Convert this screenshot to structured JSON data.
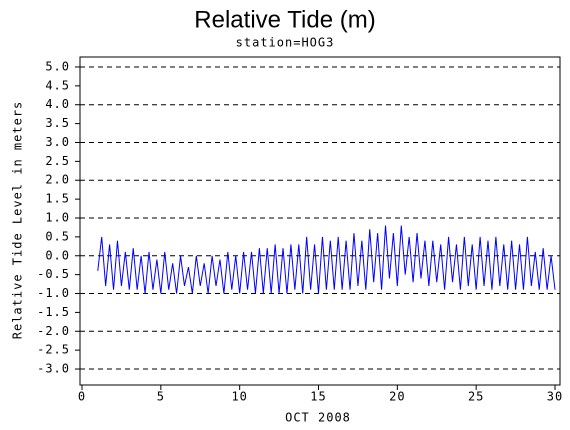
{
  "chart_data": {
    "type": "line",
    "title": "Relative Tide (m)",
    "subtitle": "station=HOG3",
    "x_label": "OCT 2008",
    "y_label": "Relative Tide Level in meters",
    "x": [
      1,
      1.25,
      1.5,
      1.75,
      2,
      2.25,
      2.5,
      2.75,
      3,
      3.25,
      3.5,
      3.75,
      4,
      4.25,
      4.5,
      4.75,
      5,
      5.25,
      5.5,
      5.75,
      6,
      6.25,
      6.5,
      6.75,
      7,
      7.25,
      7.5,
      7.75,
      8,
      8.25,
      8.5,
      8.75,
      9,
      9.25,
      9.5,
      9.75,
      10,
      10.25,
      10.5,
      10.75,
      11,
      11.25,
      11.5,
      11.75,
      12,
      12.25,
      12.5,
      12.75,
      13,
      13.25,
      13.5,
      13.75,
      14,
      14.25,
      14.5,
      14.75,
      15,
      15.25,
      15.5,
      15.75,
      16,
      16.25,
      16.5,
      16.75,
      17,
      17.25,
      17.5,
      17.75,
      18,
      18.25,
      18.5,
      18.75,
      19,
      19.25,
      19.5,
      19.75,
      20,
      20.25,
      20.5,
      20.75,
      21,
      21.25,
      21.5,
      21.75,
      22,
      22.25,
      22.5,
      22.75,
      23,
      23.25,
      23.5,
      23.75,
      24,
      24.25,
      24.5,
      24.75,
      25,
      25.25,
      25.5,
      25.75,
      26,
      26.25,
      26.5,
      26.75,
      27,
      27.25,
      27.5,
      27.75,
      28,
      28.25,
      28.5,
      28.75,
      29,
      29.25,
      29.5,
      29.75,
      30
    ],
    "series": [
      {
        "name": "HOG3",
        "color": "#0000ff",
        "values": [
          -0.4,
          0.5,
          -0.8,
          0.3,
          -0.9,
          0.4,
          -0.8,
          0.1,
          -0.9,
          0.2,
          -0.9,
          0.0,
          -1.0,
          0.1,
          -0.9,
          -0.1,
          -1.0,
          0.1,
          -0.9,
          -0.2,
          -1.0,
          0.0,
          -0.8,
          -0.3,
          -1.0,
          0.0,
          -0.8,
          -0.2,
          -1.0,
          0.0,
          -0.8,
          -0.1,
          -1.0,
          0.1,
          -0.9,
          0.0,
          -1.0,
          0.1,
          -0.9,
          0.1,
          -1.0,
          0.2,
          -1.0,
          0.2,
          -1.0,
          0.3,
          -1.0,
          0.2,
          -1.0,
          0.3,
          -0.9,
          0.3,
          -1.0,
          0.5,
          -0.9,
          0.3,
          -1.0,
          0.5,
          -0.9,
          0.4,
          -0.9,
          0.5,
          -0.9,
          0.4,
          -0.9,
          0.6,
          -0.8,
          0.4,
          -0.9,
          0.7,
          -0.7,
          0.6,
          -0.9,
          0.8,
          -0.6,
          0.6,
          -0.8,
          0.8,
          -0.5,
          0.5,
          -0.7,
          0.6,
          -0.6,
          0.4,
          -0.8,
          0.4,
          -0.7,
          0.3,
          -0.9,
          0.5,
          -0.7,
          0.3,
          -0.9,
          0.5,
          -0.8,
          0.3,
          -0.9,
          0.5,
          -0.8,
          0.4,
          -0.9,
          0.5,
          -0.8,
          0.3,
          -0.9,
          0.4,
          -0.9,
          0.3,
          -0.9,
          0.5,
          -0.8,
          0.1,
          -0.9,
          0.2,
          -0.9,
          0.0,
          -0.9
        ]
      }
    ],
    "xlim": [
      0,
      30
    ],
    "xticks": [
      0,
      5,
      10,
      15,
      20,
      25,
      30
    ],
    "ylim": [
      -3.1,
      5.1
    ],
    "yticks": [
      {
        "value": 5,
        "label": "5.0"
      },
      4.5,
      {
        "value": 4,
        "label": "4.0"
      },
      3.5,
      {
        "value": 3,
        "label": "3.0"
      },
      2.5,
      {
        "value": 2,
        "label": "2.0"
      },
      1.5,
      {
        "value": 1,
        "label": "1.0"
      },
      0.5,
      {
        "value": 0,
        "label": "0.0"
      },
      -0.5,
      {
        "value": -1,
        "label": "-1.0"
      },
      -1.5,
      {
        "value": -2,
        "label": "-2.0"
      },
      -2.5,
      {
        "value": -3,
        "label": "-3.0"
      }
    ],
    "grid": true
  }
}
